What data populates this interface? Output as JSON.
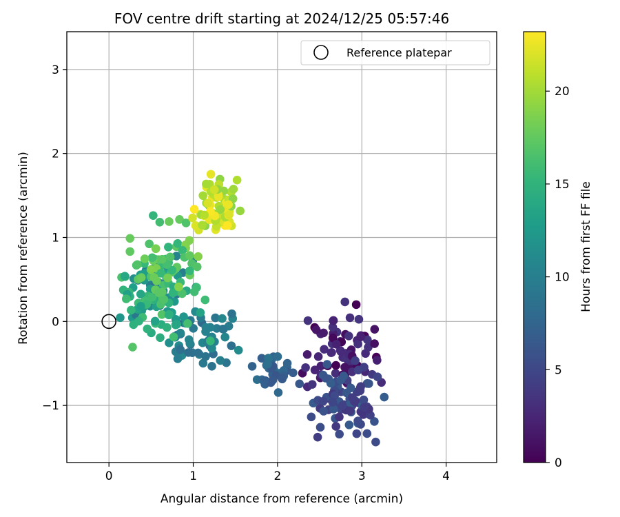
{
  "chart_data": {
    "type": "scatter",
    "title": "FOV centre drift starting at 2024/12/25 05:57:46",
    "xlabel": "Angular distance from reference (arcmin)",
    "ylabel": "Rotation from reference (arcmin)",
    "xlim": [
      -0.5,
      4.6
    ],
    "ylim": [
      -1.68,
      3.45
    ],
    "xticks": [
      0,
      1,
      2,
      3,
      4
    ],
    "yticks": [
      -1,
      0,
      1,
      2,
      3
    ],
    "xtick_labels": [
      "0",
      "1",
      "2",
      "3",
      "4"
    ],
    "ytick_labels": [
      "−1",
      "0",
      "1",
      "2",
      "3"
    ],
    "grid": true,
    "legend": {
      "position": "top-right",
      "label": "Reference platepar"
    },
    "reference_point": {
      "x": 0,
      "y": 0
    },
    "colorbar": {
      "label": "Hours from first FF file",
      "colormap": "viridis",
      "range": [
        0,
        23.2
      ],
      "ticks": [
        0,
        5,
        10,
        15,
        20
      ],
      "tick_labels": [
        "0",
        "5",
        "10",
        "15",
        "20"
      ]
    },
    "clusters": [
      {
        "hours": [
          0,
          3.5
        ],
        "center": [
          2.75,
          -0.35
        ],
        "spread": [
          0.28,
          0.3
        ],
        "count": 70
      },
      {
        "hours": [
          3.5,
          7
        ],
        "center": [
          2.85,
          -0.95
        ],
        "spread": [
          0.25,
          0.28
        ],
        "count": 80
      },
      {
        "hours": [
          6,
          9
        ],
        "center": [
          1.95,
          -0.6
        ],
        "spread": [
          0.15,
          0.12
        ],
        "count": 35
      },
      {
        "hours": [
          8,
          11.5
        ],
        "center": [
          1.15,
          -0.25
        ],
        "spread": [
          0.3,
          0.2
        ],
        "count": 55
      },
      {
        "hours": [
          9,
          13
        ],
        "center": [
          0.5,
          0.35
        ],
        "spread": [
          0.25,
          0.3
        ],
        "count": 45
      },
      {
        "hours": [
          13,
          17
        ],
        "center": [
          0.55,
          0.2
        ],
        "spread": [
          0.3,
          0.3
        ],
        "count": 60
      },
      {
        "hours": [
          15,
          19
        ],
        "center": [
          0.7,
          0.7
        ],
        "spread": [
          0.25,
          0.3
        ],
        "count": 55
      },
      {
        "hours": [
          19,
          23.2
        ],
        "center": [
          1.3,
          1.35
        ],
        "spread": [
          0.15,
          0.2
        ],
        "count": 75
      }
    ]
  }
}
